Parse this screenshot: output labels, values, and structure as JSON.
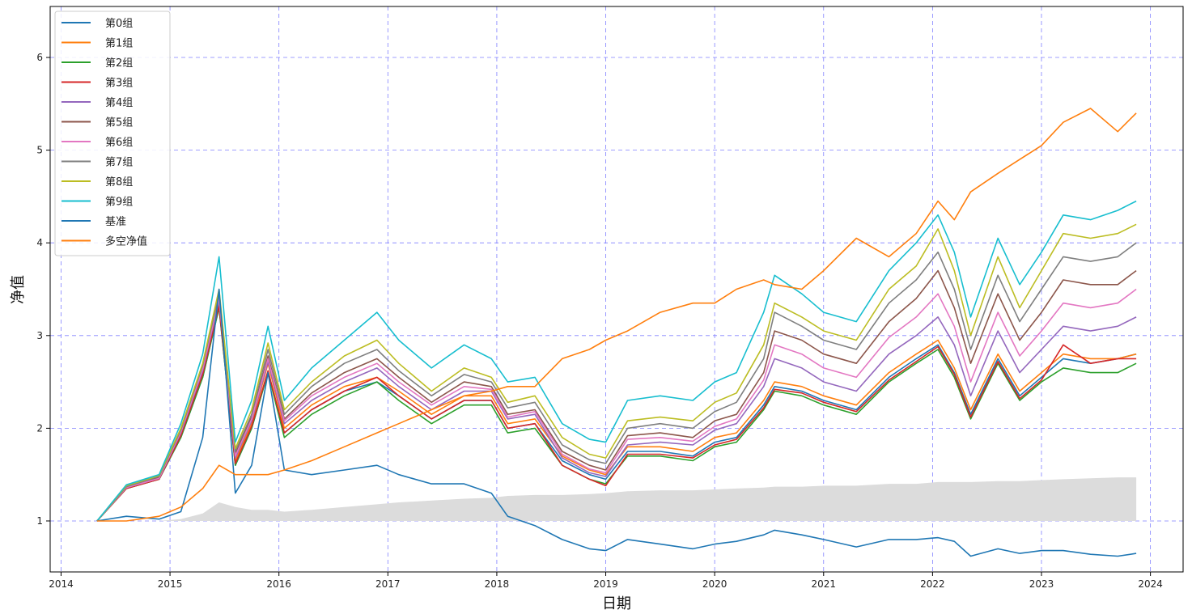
{
  "chart_data": {
    "type": "line",
    "xlabel": "日期",
    "ylabel": "净值",
    "x_ticks": [
      "2014",
      "2015",
      "2016",
      "2017",
      "2018",
      "2019",
      "2020",
      "2021",
      "2022",
      "2023",
      "2024"
    ],
    "y_ticks": [
      "1",
      "2",
      "3",
      "4",
      "5",
      "6"
    ],
    "xlim": [
      2013.9,
      2024.3
    ],
    "ylim": [
      0.45,
      6.55
    ],
    "grid": true,
    "legend_position": "top-left",
    "x": [
      2014.33,
      2014.6,
      2014.9,
      2015.1,
      2015.3,
      2015.45,
      2015.6,
      2015.75,
      2015.9,
      2016.05,
      2016.3,
      2016.6,
      2016.9,
      2017.1,
      2017.4,
      2017.7,
      2017.95,
      2018.1,
      2018.35,
      2018.6,
      2018.85,
      2019.0,
      2019.2,
      2019.5,
      2019.8,
      2020.0,
      2020.2,
      2020.45,
      2020.55,
      2020.8,
      2021.0,
      2021.3,
      2021.6,
      2021.85,
      2022.05,
      2022.2,
      2022.35,
      2022.6,
      2022.8,
      2023.0,
      2023.2,
      2023.45,
      2023.7,
      2023.87
    ],
    "series": [
      {
        "name": "第0组",
        "color": "#1f77b4",
        "values": [
          1.0,
          1.35,
          1.45,
          1.9,
          2.55,
          3.3,
          1.6,
          2.0,
          2.6,
          1.95,
          2.2,
          2.4,
          2.5,
          2.35,
          2.1,
          2.3,
          2.3,
          2.0,
          2.05,
          1.65,
          1.5,
          1.45,
          1.75,
          1.75,
          1.7,
          1.85,
          1.9,
          2.25,
          2.45,
          2.4,
          2.3,
          2.2,
          2.55,
          2.75,
          2.9,
          2.6,
          2.15,
          2.75,
          2.35,
          2.55,
          2.75,
          2.7,
          2.75,
          2.8
        ]
      },
      {
        "name": "第1组",
        "color": "#ff7f0e",
        "values": [
          1.0,
          1.35,
          1.45,
          1.95,
          2.6,
          3.35,
          1.65,
          2.05,
          2.7,
          2.0,
          2.25,
          2.45,
          2.55,
          2.4,
          2.15,
          2.35,
          2.35,
          2.05,
          2.1,
          1.7,
          1.55,
          1.5,
          1.8,
          1.8,
          1.75,
          1.9,
          1.95,
          2.3,
          2.5,
          2.45,
          2.35,
          2.25,
          2.6,
          2.8,
          2.95,
          2.65,
          2.2,
          2.8,
          2.4,
          2.6,
          2.8,
          2.75,
          2.75,
          2.8
        ]
      },
      {
        "name": "第2组",
        "color": "#2ca02c",
        "values": [
          1.0,
          1.35,
          1.45,
          1.9,
          2.55,
          3.3,
          1.6,
          2.0,
          2.6,
          1.9,
          2.15,
          2.35,
          2.5,
          2.3,
          2.05,
          2.25,
          2.25,
          1.95,
          2.0,
          1.6,
          1.45,
          1.4,
          1.7,
          1.7,
          1.65,
          1.8,
          1.85,
          2.2,
          2.4,
          2.35,
          2.25,
          2.15,
          2.5,
          2.7,
          2.85,
          2.55,
          2.1,
          2.7,
          2.3,
          2.5,
          2.65,
          2.6,
          2.6,
          2.7
        ]
      },
      {
        "name": "第3组",
        "color": "#d62728",
        "values": [
          1.0,
          1.35,
          1.45,
          1.92,
          2.58,
          3.32,
          1.62,
          2.02,
          2.62,
          1.95,
          2.2,
          2.4,
          2.55,
          2.35,
          2.1,
          2.3,
          2.3,
          2.0,
          2.05,
          1.6,
          1.45,
          1.38,
          1.72,
          1.72,
          1.68,
          1.82,
          1.88,
          2.22,
          2.42,
          2.38,
          2.28,
          2.18,
          2.52,
          2.72,
          2.88,
          2.58,
          2.12,
          2.72,
          2.32,
          2.52,
          2.9,
          2.7,
          2.75,
          2.75
        ]
      },
      {
        "name": "第4组",
        "color": "#9467bd",
        "values": [
          1.0,
          1.36,
          1.46,
          1.95,
          2.62,
          3.38,
          1.68,
          2.08,
          2.72,
          2.05,
          2.3,
          2.5,
          2.65,
          2.45,
          2.2,
          2.4,
          2.4,
          2.1,
          2.15,
          1.68,
          1.52,
          1.48,
          1.82,
          1.85,
          1.82,
          1.98,
          2.05,
          2.45,
          2.75,
          2.65,
          2.5,
          2.4,
          2.8,
          3.0,
          3.2,
          2.9,
          2.35,
          3.05,
          2.6,
          2.85,
          3.1,
          3.05,
          3.1,
          3.2
        ]
      },
      {
        "name": "第5组",
        "color": "#8c564b",
        "values": [
          1.0,
          1.37,
          1.47,
          1.97,
          2.65,
          3.42,
          1.72,
          2.12,
          2.78,
          2.1,
          2.38,
          2.6,
          2.75,
          2.55,
          2.28,
          2.5,
          2.45,
          2.15,
          2.2,
          1.75,
          1.6,
          1.55,
          1.92,
          1.95,
          1.9,
          2.08,
          2.15,
          2.6,
          3.05,
          2.95,
          2.8,
          2.7,
          3.15,
          3.4,
          3.7,
          3.3,
          2.7,
          3.45,
          2.95,
          3.25,
          3.6,
          3.55,
          3.55,
          3.7
        ]
      },
      {
        "name": "第6组",
        "color": "#e377c2",
        "values": [
          1.0,
          1.36,
          1.46,
          1.96,
          2.64,
          3.4,
          1.7,
          2.1,
          2.75,
          2.08,
          2.35,
          2.55,
          2.7,
          2.5,
          2.25,
          2.45,
          2.42,
          2.12,
          2.18,
          1.72,
          1.56,
          1.52,
          1.88,
          1.9,
          1.86,
          2.02,
          2.1,
          2.52,
          2.9,
          2.8,
          2.65,
          2.55,
          2.98,
          3.2,
          3.45,
          3.1,
          2.5,
          3.25,
          2.78,
          3.05,
          3.35,
          3.3,
          3.35,
          3.5
        ]
      },
      {
        "name": "第7组",
        "color": "#7f7f7f",
        "values": [
          1.0,
          1.37,
          1.48,
          1.98,
          2.68,
          3.45,
          1.75,
          2.15,
          2.85,
          2.15,
          2.45,
          2.7,
          2.85,
          2.62,
          2.35,
          2.58,
          2.5,
          2.22,
          2.28,
          1.82,
          1.66,
          1.62,
          2.0,
          2.05,
          2.0,
          2.18,
          2.28,
          2.75,
          3.25,
          3.1,
          2.95,
          2.85,
          3.35,
          3.6,
          3.9,
          3.5,
          2.85,
          3.65,
          3.15,
          3.5,
          3.85,
          3.8,
          3.85,
          4.0
        ]
      },
      {
        "name": "第8组",
        "color": "#bcbd22",
        "values": [
          1.0,
          1.38,
          1.49,
          2.0,
          2.7,
          3.5,
          1.78,
          2.2,
          2.92,
          2.2,
          2.5,
          2.78,
          2.95,
          2.7,
          2.4,
          2.65,
          2.55,
          2.28,
          2.35,
          1.9,
          1.72,
          1.68,
          2.08,
          2.12,
          2.08,
          2.28,
          2.38,
          2.9,
          3.35,
          3.2,
          3.05,
          2.95,
          3.5,
          3.75,
          4.15,
          3.7,
          3.0,
          3.85,
          3.3,
          3.7,
          4.1,
          4.05,
          4.1,
          4.2
        ]
      },
      {
        "name": "第9组",
        "color": "#17becf",
        "values": [
          1.0,
          1.39,
          1.5,
          2.05,
          2.8,
          3.85,
          1.85,
          2.3,
          3.1,
          2.3,
          2.65,
          2.95,
          3.25,
          2.95,
          2.65,
          2.9,
          2.75,
          2.5,
          2.55,
          2.05,
          1.88,
          1.85,
          2.3,
          2.35,
          2.3,
          2.5,
          2.6,
          3.25,
          3.65,
          3.45,
          3.25,
          3.15,
          3.7,
          4.0,
          4.3,
          3.9,
          3.2,
          4.05,
          3.55,
          3.9,
          4.3,
          4.25,
          4.35,
          4.45
        ]
      },
      {
        "name": "基准",
        "color": "#1f77b4",
        "values": [
          1.0,
          1.05,
          1.02,
          1.1,
          1.9,
          3.5,
          1.3,
          1.6,
          2.6,
          1.55,
          1.5,
          1.55,
          1.6,
          1.5,
          1.4,
          1.4,
          1.3,
          1.05,
          0.95,
          0.8,
          0.7,
          0.68,
          0.8,
          0.75,
          0.7,
          0.75,
          0.78,
          0.85,
          0.9,
          0.85,
          0.8,
          0.72,
          0.8,
          0.8,
          0.82,
          0.78,
          0.62,
          0.7,
          0.65,
          0.68,
          0.68,
          0.64,
          0.62,
          0.65
        ]
      },
      {
        "name": "多空净值",
        "color": "#ff7f0e",
        "values": [
          1.0,
          1.0,
          1.05,
          1.15,
          1.35,
          1.6,
          1.5,
          1.5,
          1.5,
          1.55,
          1.65,
          1.8,
          1.95,
          2.05,
          2.2,
          2.35,
          2.4,
          2.45,
          2.45,
          2.75,
          2.85,
          2.95,
          3.05,
          3.25,
          3.35,
          3.35,
          3.5,
          3.6,
          3.55,
          3.5,
          3.7,
          4.05,
          3.85,
          4.1,
          4.45,
          4.25,
          4.55,
          4.75,
          4.9,
          5.05,
          5.3,
          5.45,
          5.2,
          5.4
        ]
      }
    ],
    "fill_area": {
      "color": "#dcdcdc",
      "baseline": 1.0,
      "values": [
        1.0,
        1.0,
        1.0,
        1.02,
        1.08,
        1.2,
        1.15,
        1.12,
        1.12,
        1.1,
        1.12,
        1.15,
        1.18,
        1.2,
        1.22,
        1.24,
        1.25,
        1.27,
        1.28,
        1.28,
        1.29,
        1.3,
        1.32,
        1.33,
        1.33,
        1.34,
        1.35,
        1.36,
        1.37,
        1.37,
        1.38,
        1.38,
        1.4,
        1.4,
        1.42,
        1.42,
        1.42,
        1.43,
        1.43,
        1.44,
        1.45,
        1.46,
        1.47,
        1.47
      ]
    }
  }
}
